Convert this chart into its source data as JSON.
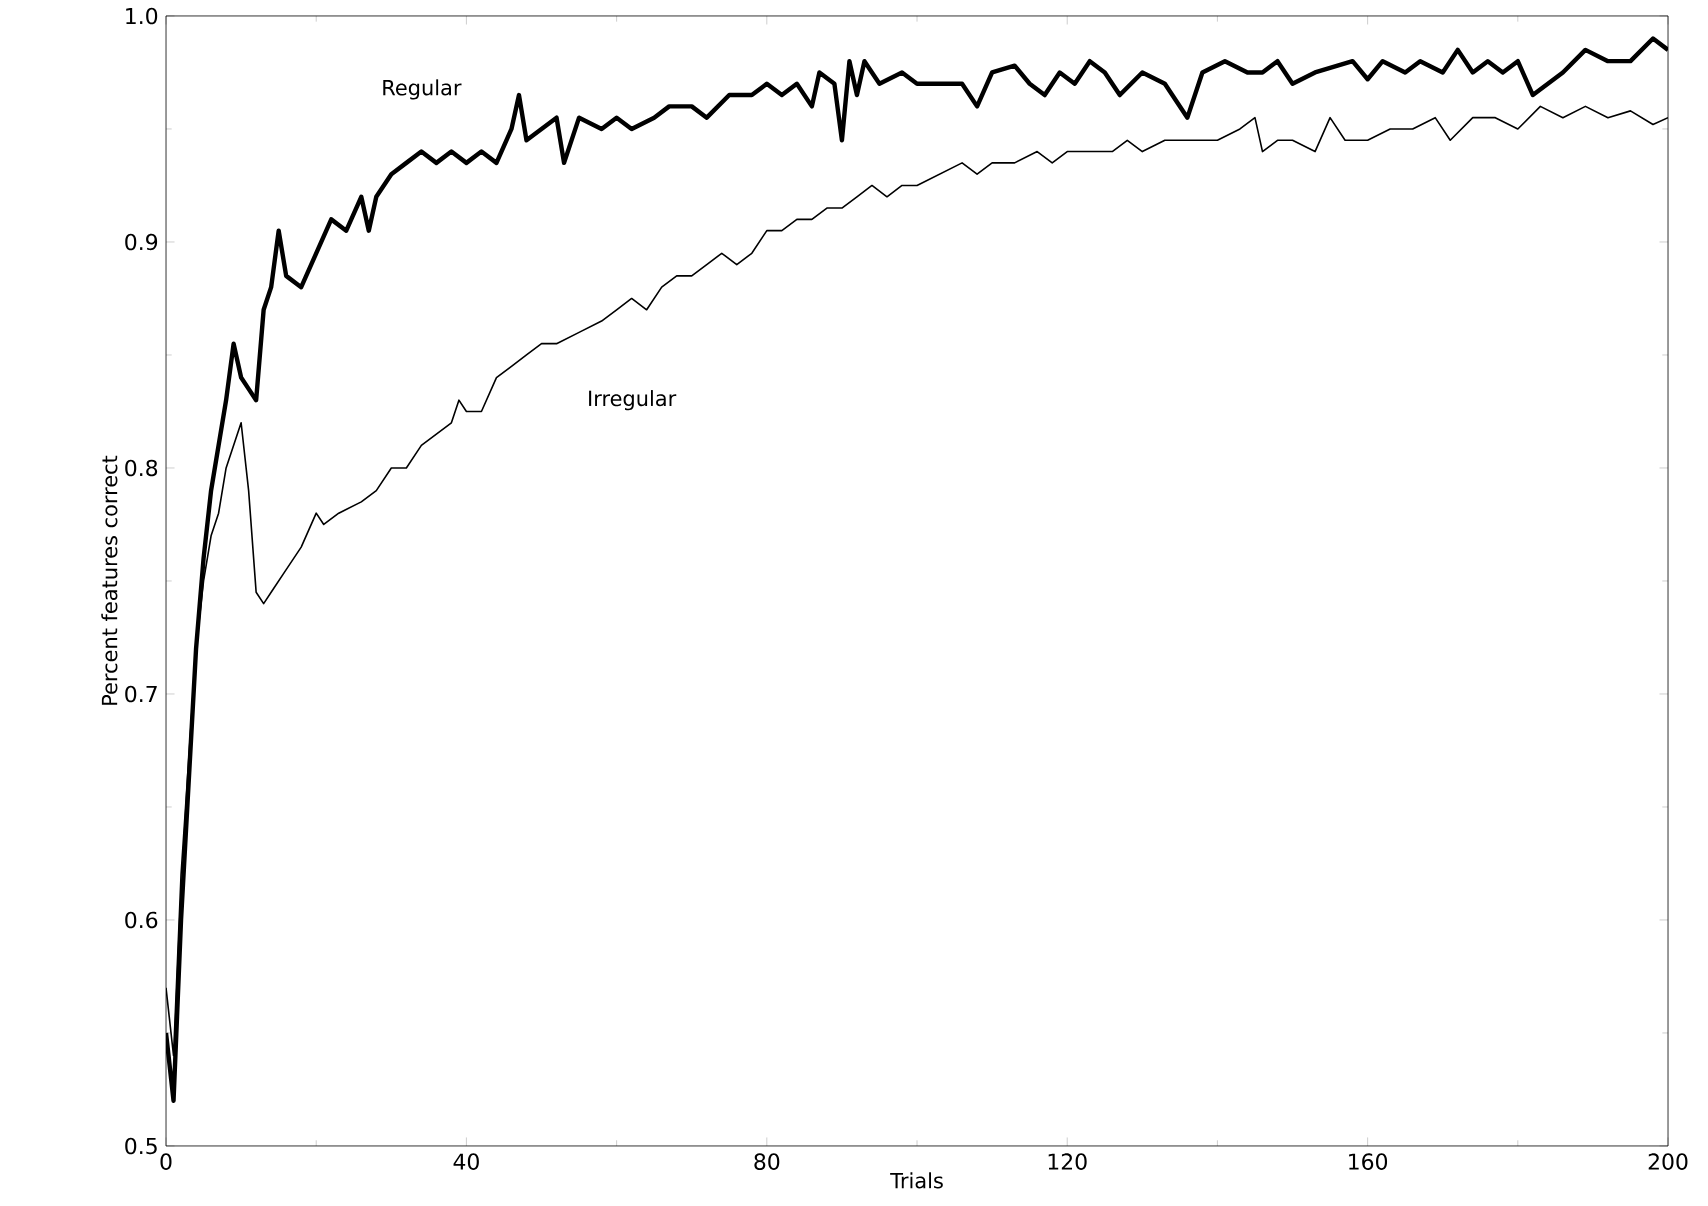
{
  "chart_data": {
    "type": "line",
    "xlabel": "Trials",
    "ylabel": "Percent features correct",
    "xlim": [
      0,
      200
    ],
    "xticks": [
      0,
      40,
      80,
      120,
      160,
      200
    ],
    "ylim": [
      0.5,
      1.0
    ],
    "yticks": [
      0.5,
      0.6,
      0.7,
      0.8,
      0.9,
      {
        "value": 1.0,
        "label": "1.0"
      }
    ],
    "grid": false,
    "marker": "none",
    "line_style": "solid",
    "annotations": [
      "Regular",
      "Irregular"
    ],
    "series": [
      {
        "color": "#000000",
        "x": [
          0,
          1,
          2,
          3,
          4,
          5,
          6,
          7,
          8,
          9,
          10,
          11,
          12,
          13,
          14,
          15,
          16,
          18,
          20,
          22,
          24,
          26,
          27,
          28,
          30,
          32,
          34,
          36,
          38,
          40,
          42,
          44,
          46,
          47,
          48,
          50,
          52,
          53,
          55,
          58,
          60,
          62,
          65,
          67,
          70,
          72,
          75,
          78,
          80,
          82,
          84,
          86,
          87,
          89,
          90,
          91,
          92,
          93,
          95,
          98,
          100,
          103,
          106,
          108,
          110,
          113,
          115,
          117,
          119,
          121,
          123,
          125,
          127,
          130,
          133,
          136,
          138,
          141,
          144,
          146,
          148,
          150,
          153,
          156,
          158,
          160,
          162,
          165,
          167,
          170,
          172,
          174,
          176,
          178,
          180,
          182,
          184,
          186,
          189,
          192,
          195,
          198,
          200
        ],
        "values": [
          0.55,
          0.52,
          0.6,
          0.66,
          0.72,
          0.76,
          0.79,
          0.81,
          0.83,
          0.855,
          0.84,
          0.835,
          0.83,
          0.87,
          0.88,
          0.905,
          0.885,
          0.88,
          0.895,
          0.91,
          0.905,
          0.92,
          0.905,
          0.92,
          0.93,
          0.935,
          0.94,
          0.935,
          0.94,
          0.935,
          0.94,
          0.935,
          0.95,
          0.965,
          0.945,
          0.95,
          0.955,
          0.935,
          0.955,
          0.95,
          0.955,
          0.95,
          0.955,
          0.96,
          0.96,
          0.955,
          0.965,
          0.965,
          0.97,
          0.965,
          0.97,
          0.96,
          0.975,
          0.97,
          0.945,
          0.98,
          0.965,
          0.98,
          0.97,
          0.975,
          0.97,
          0.97,
          0.97,
          0.96,
          0.975,
          0.978,
          0.97,
          0.965,
          0.975,
          0.97,
          0.98,
          0.975,
          0.965,
          0.975,
          0.97,
          0.955,
          0.975,
          0.98,
          0.975,
          0.975,
          0.98,
          0.97,
          0.975,
          0.978,
          0.98,
          0.972,
          0.98,
          0.975,
          0.98,
          0.975,
          0.985,
          0.975,
          0.98,
          0.975,
          0.98,
          0.965,
          0.97,
          0.975,
          0.985,
          0.98,
          0.98,
          0.99,
          0.985
        ]
      },
      {
        "color": "#000000",
        "x": [
          0,
          1,
          2,
          3,
          4,
          5,
          6,
          7,
          8,
          9,
          10,
          11,
          12,
          13,
          14,
          16,
          18,
          20,
          21,
          23,
          26,
          28,
          30,
          32,
          34,
          36,
          38,
          39,
          40,
          42,
          44,
          46,
          48,
          50,
          52,
          55,
          58,
          60,
          62,
          64,
          66,
          68,
          70,
          72,
          74,
          76,
          78,
          80,
          82,
          84,
          86,
          88,
          90,
          92,
          94,
          96,
          98,
          100,
          103,
          106,
          108,
          110,
          113,
          116,
          118,
          120,
          123,
          126,
          128,
          130,
          133,
          136,
          140,
          143,
          145,
          146,
          148,
          150,
          153,
          155,
          157,
          160,
          163,
          166,
          169,
          171,
          174,
          177,
          180,
          183,
          186,
          189,
          192,
          195,
          198,
          200
        ],
        "values": [
          0.57,
          0.54,
          0.62,
          0.67,
          0.72,
          0.75,
          0.77,
          0.78,
          0.8,
          0.81,
          0.82,
          0.79,
          0.745,
          0.74,
          0.745,
          0.755,
          0.765,
          0.78,
          0.775,
          0.78,
          0.785,
          0.79,
          0.8,
          0.8,
          0.81,
          0.815,
          0.82,
          0.83,
          0.825,
          0.825,
          0.84,
          0.845,
          0.85,
          0.855,
          0.855,
          0.86,
          0.865,
          0.87,
          0.875,
          0.87,
          0.88,
          0.885,
          0.885,
          0.89,
          0.895,
          0.89,
          0.895,
          0.905,
          0.905,
          0.91,
          0.91,
          0.915,
          0.915,
          0.92,
          0.925,
          0.92,
          0.925,
          0.925,
          0.93,
          0.935,
          0.93,
          0.935,
          0.935,
          0.94,
          0.935,
          0.94,
          0.94,
          0.94,
          0.945,
          0.94,
          0.945,
          0.945,
          0.945,
          0.95,
          0.955,
          0.94,
          0.945,
          0.945,
          0.94,
          0.955,
          0.945,
          0.945,
          0.95,
          0.95,
          0.955,
          0.945,
          0.955,
          0.955,
          0.95,
          0.96,
          0.955,
          0.96,
          0.955,
          0.958,
          0.952,
          0.955
        ]
      }
    ]
  }
}
